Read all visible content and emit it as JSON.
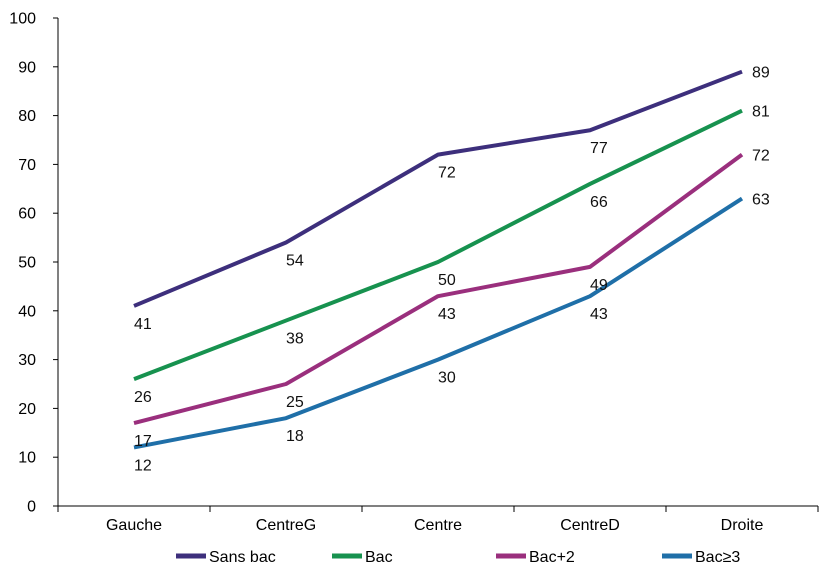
{
  "chart_data": {
    "type": "line",
    "categories": [
      "Gauche",
      "CentreG",
      "Centre",
      "CentreD",
      "Droite"
    ],
    "ylim": [
      0,
      100
    ],
    "yticks": [
      0,
      10,
      20,
      30,
      40,
      50,
      60,
      70,
      80,
      90,
      100
    ],
    "grid": false,
    "legend_position": "bottom",
    "series": [
      {
        "name": "Sans bac",
        "color": "#3d2f7c",
        "values": [
          41,
          54,
          72,
          77,
          89
        ]
      },
      {
        "name": "Bac",
        "color": "#17924f",
        "values": [
          26,
          38,
          50,
          66,
          81
        ]
      },
      {
        "name": "Bac+2",
        "color": "#9a2f7d",
        "values": [
          17,
          25,
          43,
          49,
          72
        ]
      },
      {
        "name": "Bac≥3",
        "color": "#1f6fa8",
        "values": [
          12,
          18,
          30,
          43,
          63
        ]
      }
    ]
  }
}
